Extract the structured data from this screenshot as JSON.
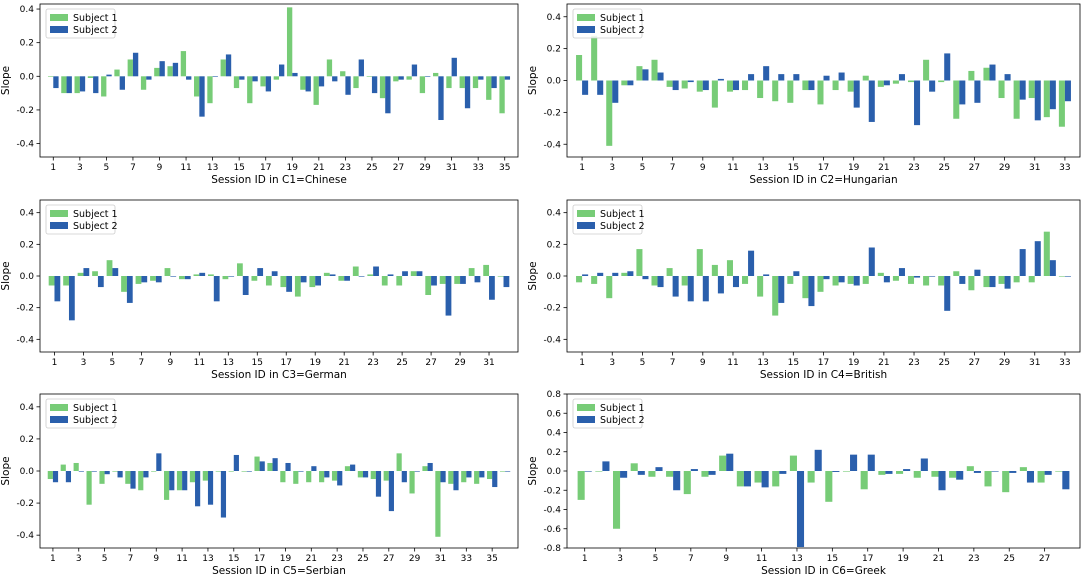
{
  "colors": {
    "subject1": "#77cc77",
    "subject2": "#2a5fac",
    "axis": "#000000"
  },
  "legend": [
    "Subject 1",
    "Subject 2"
  ],
  "ylabel": "Slope",
  "chart_data": [
    {
      "type": "bar",
      "xlabel": "Session ID in C1=Chinese",
      "ylabel": "Slope",
      "ylim": [
        -0.48,
        0.43
      ],
      "yticks": [
        -0.4,
        -0.2,
        0.0,
        0.2,
        0.4
      ],
      "ytick_labels": [
        "-0.4",
        "-0.2",
        "0.0",
        "0.2",
        "0.4"
      ],
      "categories": [
        1,
        2,
        3,
        4,
        5,
        6,
        7,
        8,
        9,
        10,
        11,
        12,
        13,
        14,
        15,
        16,
        17,
        18,
        19,
        20,
        21,
        22,
        23,
        24,
        25,
        26,
        27,
        28,
        29,
        30,
        31,
        32,
        33,
        34,
        35
      ],
      "xtick_labels": [
        "1",
        "3",
        "5",
        "7",
        "9",
        "11",
        "13",
        "15",
        "17",
        "19",
        "21",
        "23",
        "25",
        "27",
        "29",
        "31",
        "33",
        "35"
      ],
      "series": [
        {
          "name": "Subject 1",
          "values": [
            0.0,
            -0.1,
            -0.1,
            -0.01,
            -0.12,
            0.04,
            0.1,
            -0.08,
            0.05,
            0.06,
            0.15,
            -0.12,
            -0.16,
            0.1,
            -0.07,
            -0.16,
            -0.06,
            -0.02,
            0.41,
            -0.08,
            -0.17,
            0.1,
            0.03,
            -0.07,
            0.0,
            -0.13,
            -0.03,
            -0.02,
            -0.1,
            0.02,
            -0.07,
            -0.07,
            -0.07,
            -0.14,
            -0.22
          ]
        },
        {
          "name": "Subject 2",
          "values": [
            -0.07,
            -0.1,
            -0.09,
            -0.1,
            0.01,
            -0.08,
            0.14,
            -0.02,
            0.09,
            0.08,
            -0.02,
            -0.24,
            0.0,
            0.13,
            -0.02,
            -0.03,
            -0.09,
            0.07,
            0.02,
            -0.09,
            -0.06,
            -0.03,
            -0.11,
            0.1,
            -0.1,
            -0.22,
            -0.02,
            0.07,
            0.0,
            -0.26,
            0.11,
            -0.19,
            -0.02,
            -0.07,
            -0.02
          ]
        }
      ]
    },
    {
      "type": "bar",
      "xlabel": "Session ID in C2=Hungarian",
      "ylabel": "Slope",
      "ylim": [
        -0.48,
        0.48
      ],
      "yticks": [
        -0.4,
        -0.2,
        0.0,
        0.2,
        0.4
      ],
      "ytick_labels": [
        "-0.4",
        "-0.2",
        "0.0",
        "0.2",
        "0.4"
      ],
      "categories": [
        1,
        2,
        3,
        4,
        5,
        6,
        7,
        8,
        9,
        10,
        11,
        12,
        13,
        14,
        15,
        16,
        17,
        18,
        19,
        20,
        21,
        22,
        23,
        24,
        25,
        26,
        27,
        28,
        29,
        30,
        31,
        32,
        33
      ],
      "xtick_labels": [
        "1",
        "3",
        "5",
        "7",
        "9",
        "11",
        "13",
        "15",
        "17",
        "19",
        "21",
        "23",
        "25",
        "27",
        "29",
        "31",
        "33"
      ],
      "series": [
        {
          "name": "Subject 1",
          "values": [
            0.16,
            0.28,
            -0.41,
            -0.03,
            0.09,
            0.13,
            -0.04,
            -0.05,
            -0.07,
            -0.17,
            -0.07,
            -0.06,
            -0.11,
            -0.13,
            -0.14,
            -0.06,
            -0.15,
            -0.06,
            -0.07,
            0.03,
            -0.04,
            -0.02,
            -0.01,
            0.13,
            -0.01,
            -0.24,
            0.06,
            0.08,
            -0.11,
            -0.24,
            -0.11,
            -0.23,
            -0.29
          ]
        },
        {
          "name": "Subject 2",
          "values": [
            -0.09,
            -0.09,
            -0.14,
            -0.03,
            0.07,
            0.05,
            -0.06,
            -0.01,
            -0.06,
            0.01,
            -0.06,
            0.04,
            0.09,
            0.04,
            0.04,
            -0.06,
            0.03,
            0.05,
            -0.17,
            -0.26,
            -0.03,
            0.04,
            -0.28,
            -0.07,
            0.17,
            -0.15,
            -0.14,
            0.1,
            0.04,
            -0.12,
            -0.25,
            -0.18,
            -0.13
          ]
        }
      ]
    },
    {
      "type": "bar",
      "xlabel": "Session ID in C3=German",
      "ylabel": "Slope",
      "ylim": [
        -0.48,
        0.48
      ],
      "yticks": [
        -0.4,
        -0.2,
        0.0,
        0.2,
        0.4
      ],
      "ytick_labels": [
        "-0.4",
        "-0.2",
        "0.0",
        "0.2",
        "0.4"
      ],
      "categories": [
        1,
        2,
        3,
        4,
        5,
        6,
        7,
        8,
        9,
        10,
        11,
        12,
        13,
        14,
        15,
        16,
        17,
        18,
        19,
        20,
        21,
        22,
        23,
        24,
        25,
        26,
        27,
        28,
        29,
        30,
        31,
        32
      ],
      "xtick_labels": [
        "1",
        "3",
        "5",
        "7",
        "9",
        "11",
        "13",
        "15",
        "17",
        "19",
        "21",
        "23",
        "25",
        "27",
        "29",
        "31"
      ],
      "series": [
        {
          "name": "Subject 1",
          "values": [
            -0.06,
            -0.06,
            0.02,
            0.03,
            0.1,
            -0.1,
            -0.05,
            -0.03,
            0.05,
            -0.02,
            0.01,
            0.01,
            -0.02,
            0.08,
            -0.03,
            -0.06,
            -0.07,
            -0.13,
            -0.07,
            0.02,
            -0.03,
            0.06,
            0.01,
            -0.06,
            -0.06,
            0.03,
            -0.12,
            -0.05,
            -0.05,
            0.05,
            0.07,
            0.0
          ]
        },
        {
          "name": "Subject 2",
          "values": [
            -0.16,
            -0.28,
            0.05,
            -0.07,
            0.05,
            -0.17,
            -0.04,
            -0.04,
            0.0,
            -0.02,
            0.02,
            -0.16,
            0.0,
            -0.12,
            0.05,
            0.03,
            -0.1,
            -0.04,
            -0.06,
            0.01,
            -0.03,
            0.0,
            0.06,
            0.01,
            0.03,
            0.03,
            -0.06,
            -0.25,
            -0.05,
            -0.04,
            -0.15,
            -0.07
          ]
        }
      ]
    },
    {
      "type": "bar",
      "xlabel": "Session ID in C4=British",
      "ylabel": "Slope",
      "ylim": [
        -0.48,
        0.48
      ],
      "yticks": [
        -0.4,
        -0.2,
        0.0,
        0.2,
        0.4
      ],
      "ytick_labels": [
        "-0.4",
        "-0.2",
        "0.0",
        "0.2",
        "0.4"
      ],
      "categories": [
        1,
        2,
        3,
        4,
        5,
        6,
        7,
        8,
        9,
        10,
        11,
        12,
        13,
        14,
        15,
        16,
        17,
        18,
        19,
        20,
        21,
        22,
        23,
        24,
        25,
        26,
        27,
        28,
        29,
        30,
        31,
        32,
        33
      ],
      "xtick_labels": [
        "1",
        "3",
        "5",
        "7",
        "9",
        "11",
        "13",
        "15",
        "17",
        "19",
        "21",
        "23",
        "25",
        "27",
        "29",
        "31",
        "33"
      ],
      "series": [
        {
          "name": "Subject 1",
          "values": [
            -0.04,
            -0.05,
            -0.14,
            0.02,
            0.17,
            -0.06,
            0.05,
            -0.06,
            0.17,
            0.07,
            0.1,
            -0.05,
            -0.13,
            -0.25,
            -0.05,
            -0.14,
            -0.1,
            -0.06,
            -0.05,
            -0.05,
            0.02,
            -0.03,
            -0.05,
            -0.06,
            -0.06,
            0.03,
            -0.09,
            -0.07,
            -0.05,
            -0.04,
            -0.04,
            0.28,
            0.0
          ]
        },
        {
          "name": "Subject 2",
          "values": [
            0.01,
            0.02,
            0.02,
            0.03,
            -0.02,
            -0.07,
            -0.13,
            -0.16,
            -0.16,
            -0.11,
            -0.07,
            0.16,
            0.01,
            -0.17,
            0.03,
            -0.19,
            -0.02,
            -0.04,
            -0.06,
            0.18,
            -0.04,
            0.05,
            -0.01,
            0.0,
            -0.22,
            -0.05,
            0.04,
            -0.07,
            -0.08,
            0.17,
            0.22,
            0.1,
            0.0
          ]
        }
      ]
    },
    {
      "type": "bar",
      "xlabel": "Session ID in C5=Serbian",
      "ylabel": "Slope",
      "ylim": [
        -0.48,
        0.48
      ],
      "yticks": [
        -0.4,
        -0.2,
        0.0,
        0.2,
        0.4
      ],
      "ytick_labels": [
        "-0.4",
        "-0.2",
        "0.0",
        "0.2",
        "0.4"
      ],
      "categories": [
        1,
        2,
        3,
        4,
        5,
        6,
        7,
        8,
        9,
        10,
        11,
        12,
        13,
        14,
        15,
        16,
        17,
        18,
        19,
        20,
        21,
        22,
        23,
        24,
        25,
        26,
        27,
        28,
        29,
        30,
        31,
        32,
        33,
        34,
        35,
        36
      ],
      "xtick_labels": [
        "1",
        "3",
        "5",
        "7",
        "9",
        "11",
        "13",
        "15",
        "17",
        "19",
        "21",
        "23",
        "25",
        "27",
        "29",
        "31",
        "33",
        "35"
      ],
      "series": [
        {
          "name": "Subject 1",
          "values": [
            -0.05,
            0.04,
            0.05,
            -0.21,
            -0.08,
            0.0,
            -0.08,
            -0.12,
            0.0,
            -0.18,
            -0.12,
            -0.07,
            -0.06,
            0.0,
            0.0,
            0.0,
            0.09,
            0.05,
            -0.07,
            -0.08,
            -0.07,
            -0.07,
            -0.06,
            0.03,
            -0.04,
            -0.05,
            -0.06,
            0.11,
            -0.14,
            0.03,
            -0.41,
            -0.08,
            -0.07,
            -0.08,
            -0.05,
            0.0
          ]
        },
        {
          "name": "Subject 2",
          "values": [
            -0.07,
            -0.07,
            0.0,
            0.0,
            -0.02,
            -0.04,
            -0.11,
            -0.04,
            0.11,
            -0.12,
            -0.12,
            -0.22,
            -0.21,
            -0.29,
            0.1,
            0.0,
            0.06,
            0.08,
            0.05,
            0.0,
            0.03,
            -0.04,
            -0.09,
            0.04,
            -0.04,
            -0.16,
            -0.25,
            -0.07,
            0.0,
            0.05,
            -0.07,
            -0.12,
            -0.04,
            -0.04,
            -0.1,
            0.0
          ]
        }
      ]
    },
    {
      "type": "bar",
      "xlabel": "Session ID in C6=Greek",
      "ylabel": "Slope",
      "ylim": [
        -0.8,
        0.8
      ],
      "yticks": [
        -0.8,
        -0.6,
        -0.4,
        -0.2,
        0.0,
        0.2,
        0.4,
        0.6,
        0.8
      ],
      "ytick_labels": [
        "-0.8",
        "-0.6",
        "-0.4",
        "-0.2",
        "0.0",
        "0.2",
        "0.4",
        "0.6",
        "0.8"
      ],
      "categories": [
        1,
        2,
        3,
        4,
        5,
        6,
        7,
        8,
        9,
        10,
        11,
        12,
        13,
        14,
        15,
        16,
        17,
        18,
        19,
        20,
        21,
        22,
        23,
        24,
        25,
        26,
        27,
        28
      ],
      "xtick_labels": [
        "1",
        "3",
        "5",
        "7",
        "9",
        "11",
        "13",
        "15",
        "17",
        "19",
        "21",
        "23",
        "25",
        "27"
      ],
      "series": [
        {
          "name": "Subject 1",
          "values": [
            -0.3,
            0.0,
            -0.6,
            0.08,
            -0.06,
            -0.06,
            -0.24,
            -0.06,
            0.16,
            -0.16,
            -0.12,
            -0.16,
            0.16,
            -0.12,
            -0.32,
            0.0,
            -0.19,
            -0.04,
            -0.03,
            -0.07,
            -0.06,
            -0.07,
            0.05,
            -0.16,
            -0.22,
            0.04,
            -0.12,
            0.0
          ]
        },
        {
          "name": "Subject 2",
          "values": [
            0.0,
            0.1,
            -0.07,
            -0.04,
            0.04,
            -0.2,
            0.02,
            -0.04,
            0.18,
            -0.16,
            -0.17,
            -0.03,
            -0.79,
            0.22,
            -0.01,
            0.17,
            0.17,
            -0.03,
            0.02,
            0.13,
            -0.2,
            -0.09,
            -0.02,
            0.0,
            -0.02,
            -0.12,
            -0.04,
            -0.19
          ]
        }
      ]
    }
  ]
}
